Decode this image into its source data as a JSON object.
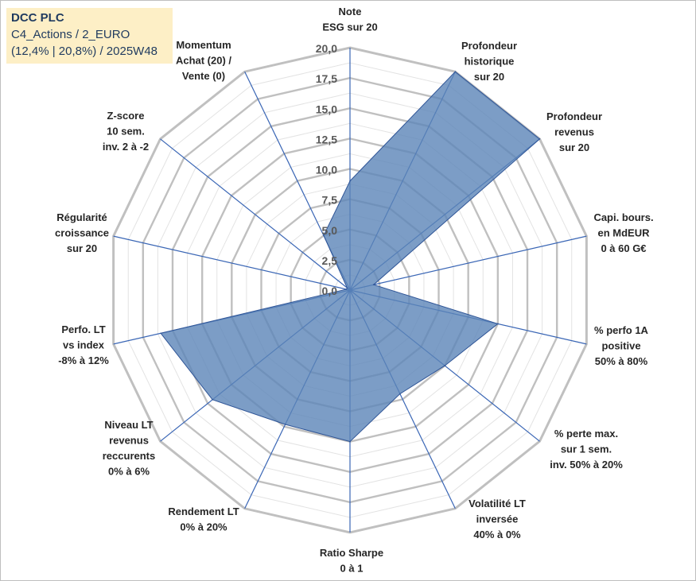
{
  "title": {
    "line1": "DCC PLC",
    "line2": "C4_Actions / 2_EURO",
    "line3": "(12,4% | 20,8%) / 2025W48"
  },
  "chart_data": {
    "type": "radar",
    "rmin": 0,
    "rmax": 20,
    "ticks": [
      "0,0",
      "2,5",
      "5,0",
      "7,5",
      "10,0",
      "12,5",
      "15,0",
      "17,5",
      "20,0"
    ],
    "colors": {
      "fill": "#5b84b8",
      "line": "#2f5597",
      "grid": "#c0c0c0"
    },
    "axes": [
      {
        "label": [
          "Note",
          "ESG sur 20"
        ],
        "value": 9.0
      },
      {
        "label": [
          "Profondeur",
          "historique",
          "sur 20"
        ],
        "value": 20.0
      },
      {
        "label": [
          "Profondeur",
          "revenus",
          "sur 20"
        ],
        "value": 20.0
      },
      {
        "label": [
          "Capi. bours.",
          "en MdEUR",
          "0 à 60 G€"
        ],
        "value": 2.0
      },
      {
        "label": [
          "% perfo 1A",
          "positive",
          "50% à 80%"
        ],
        "value": 12.5
      },
      {
        "label": [
          "% perte max.",
          "sur 1 sem.",
          "inv. 50% à 20%"
        ],
        "value": 10.0
      },
      {
        "label": [
          "Volatilité LT",
          "inversée",
          "40% à 0%"
        ],
        "value": 9.5
      },
      {
        "label": [
          "Ratio Sharpe",
          "0 à 1"
        ],
        "value": 12.5
      },
      {
        "label": [
          "Rendement LT",
          "0% à 20%"
        ],
        "value": 12.3
      },
      {
        "label": [
          "Niveau LT",
          "revenus",
          "reccurents",
          "0% à 6%"
        ],
        "value": 14.5
      },
      {
        "label": [
          "Perfo. LT",
          "vs index",
          "-8% à 12%"
        ],
        "value": 16.0
      },
      {
        "label": [
          "Régularité",
          "croissance",
          "sur 20"
        ],
        "value": 0.3
      },
      {
        "label": [
          "Z-score",
          "10 sem.",
          "inv. 2 à -2"
        ],
        "value": 0.3
      },
      {
        "label": [
          "Momentum",
          "Achat (20) /",
          "Vente (0)"
        ],
        "value": 5.0
      }
    ]
  }
}
